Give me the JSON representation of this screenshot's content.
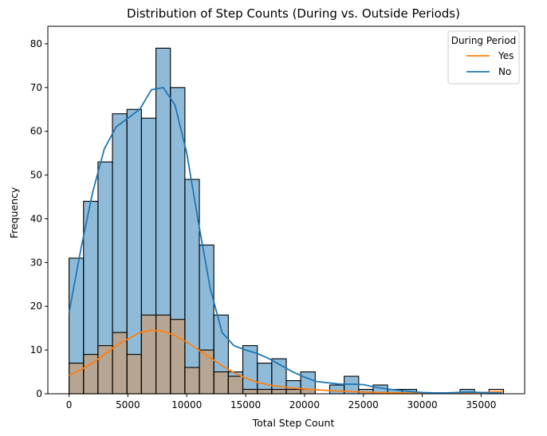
{
  "chart_data": {
    "type": "histogram",
    "title": "Distribution of Step Counts (During vs. Outside Periods)",
    "xlabel": "Total Step Count",
    "ylabel": "Frequency",
    "xlim": [
      -1800,
      38700
    ],
    "ylim": [
      0,
      84
    ],
    "xticks": [
      0,
      5000,
      10000,
      15000,
      20000,
      25000,
      30000,
      35000
    ],
    "yticks": [
      0,
      10,
      20,
      30,
      40,
      50,
      60,
      70,
      80
    ],
    "bin_start": 0,
    "bin_width": 1230,
    "legend": {
      "title": "During Period",
      "position": "top-right",
      "entries": [
        {
          "label": "Yes",
          "color": "#ff7f0e"
        },
        {
          "label": "No",
          "color": "#1f77b4"
        }
      ]
    },
    "series": [
      {
        "name": "No",
        "color": "#1f77b4",
        "counts": [
          31,
          44,
          53,
          64,
          65,
          63,
          79,
          70,
          49,
          34,
          18,
          5,
          11,
          7,
          8,
          3,
          5,
          0,
          2,
          4,
          1,
          2,
          1,
          1,
          0,
          0,
          0,
          1,
          0,
          0
        ],
        "kde": [
          [
            0,
            18.5
          ],
          [
            1000,
            33
          ],
          [
            2000,
            46
          ],
          [
            3000,
            56
          ],
          [
            4000,
            61
          ],
          [
            5000,
            63
          ],
          [
            6000,
            65
          ],
          [
            7000,
            69.5
          ],
          [
            8000,
            70
          ],
          [
            9000,
            66
          ],
          [
            10000,
            55
          ],
          [
            11000,
            39
          ],
          [
            12000,
            24
          ],
          [
            13000,
            14
          ],
          [
            14000,
            11
          ],
          [
            15000,
            10
          ],
          [
            16000,
            9.2
          ],
          [
            17000,
            8
          ],
          [
            18000,
            6.5
          ],
          [
            19000,
            5
          ],
          [
            20000,
            3.8
          ],
          [
            21000,
            2.8
          ],
          [
            22000,
            2.5
          ],
          [
            23000,
            2.2
          ],
          [
            24000,
            2.2
          ],
          [
            25000,
            2.1
          ],
          [
            26000,
            1.5
          ],
          [
            27000,
            1.1
          ],
          [
            28000,
            0.8
          ],
          [
            29000,
            0.5
          ],
          [
            30000,
            0.3
          ],
          [
            31000,
            0.2
          ],
          [
            32000,
            0.2
          ],
          [
            33000,
            0.3
          ],
          [
            34000,
            0.4
          ],
          [
            35000,
            0.3
          ],
          [
            36000,
            0.2
          ],
          [
            36800,
            0.15
          ]
        ]
      },
      {
        "name": "Yes",
        "color": "#ff7f0e",
        "counts": [
          7,
          9,
          11,
          14,
          9,
          18,
          18,
          17,
          6,
          10,
          5,
          4,
          1,
          1,
          1,
          1,
          1,
          0,
          0,
          0,
          0,
          0,
          0,
          0,
          0,
          0,
          0,
          0,
          0,
          1
        ],
        "kde": [
          [
            0,
            4.2
          ],
          [
            1000,
            5.5
          ],
          [
            2000,
            7
          ],
          [
            3000,
            9
          ],
          [
            4000,
            11
          ],
          [
            5000,
            12.5
          ],
          [
            6000,
            14
          ],
          [
            7000,
            14.5
          ],
          [
            8000,
            14.3
          ],
          [
            9000,
            13.3
          ],
          [
            10000,
            11.8
          ],
          [
            11000,
            10
          ],
          [
            12000,
            8.2
          ],
          [
            13000,
            6.4
          ],
          [
            14000,
            4.8
          ],
          [
            15000,
            3.6
          ],
          [
            16000,
            2.6
          ],
          [
            17000,
            2
          ],
          [
            18000,
            1.6
          ],
          [
            19000,
            1.3
          ],
          [
            20000,
            1.1
          ],
          [
            21000,
            0.9
          ],
          [
            22000,
            0.75
          ],
          [
            23000,
            0.6
          ],
          [
            24000,
            0.5
          ],
          [
            25000,
            0.4
          ],
          [
            26000,
            0.3
          ],
          [
            28000,
            0.2
          ],
          [
            30000,
            0.15
          ],
          [
            33000,
            0.15
          ],
          [
            35000,
            0.25
          ],
          [
            36000,
            0.35
          ],
          [
            36800,
            0.4
          ]
        ]
      }
    ]
  }
}
